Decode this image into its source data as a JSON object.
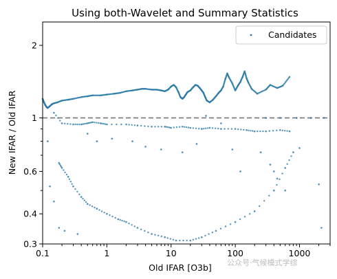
{
  "chart_data": {
    "type": "scatter",
    "title": "Using both-Wavelet and Summary Statistics",
    "xlabel": "Old IFAR [O3b]",
    "ylabel": "New IFAR / Old IFAR",
    "xscale": "log",
    "yscale": "log",
    "xlim": [
      0.1,
      3000
    ],
    "ylim": [
      0.3,
      2.5
    ],
    "xticks": [
      {
        "value": 0.1,
        "label": "0.1"
      },
      {
        "value": 1,
        "label": "1"
      },
      {
        "value": 10,
        "label": "10"
      },
      {
        "value": 100,
        "label": "100"
      },
      {
        "value": 1000,
        "label": "1000"
      }
    ],
    "yticks": [
      {
        "value": 0.3,
        "label": "0.3"
      },
      {
        "value": 0.4,
        "label": "0.4"
      },
      {
        "value": 0.6,
        "label": "0.6"
      },
      {
        "value": 1,
        "label": "1"
      },
      {
        "value": 2,
        "label": "2"
      }
    ],
    "reference_line": {
      "y": 1,
      "style": "dashed",
      "color": "#777777"
    },
    "legend": {
      "placement": "top-right",
      "entries": [
        "Candidates"
      ]
    },
    "series": [
      {
        "name": "Candidates",
        "color": "#2c7ba6",
        "groups": {
          "upper_band": [
            [
              0.1,
              1.2
            ],
            [
              0.105,
              1.16
            ],
            [
              0.11,
              1.13
            ],
            [
              0.115,
              1.11
            ],
            [
              0.12,
              1.1
            ],
            [
              0.13,
              1.12
            ],
            [
              0.14,
              1.14
            ],
            [
              0.15,
              1.15
            ],
            [
              0.17,
              1.16
            ],
            [
              0.2,
              1.18
            ],
            [
              0.25,
              1.19
            ],
            [
              0.3,
              1.2
            ],
            [
              0.4,
              1.22
            ],
            [
              0.5,
              1.23
            ],
            [
              0.6,
              1.24
            ],
            [
              0.8,
              1.24
            ],
            [
              1,
              1.25
            ],
            [
              1.3,
              1.26
            ],
            [
              1.6,
              1.27
            ],
            [
              2,
              1.29
            ],
            [
              2.5,
              1.3
            ],
            [
              3,
              1.31
            ],
            [
              3.5,
              1.32
            ],
            [
              4,
              1.32
            ],
            [
              5,
              1.31
            ],
            [
              6,
              1.31
            ],
            [
              7,
              1.3
            ],
            [
              8,
              1.29
            ],
            [
              9,
              1.31
            ],
            [
              10,
              1.35
            ],
            [
              11,
              1.37
            ],
            [
              12,
              1.34
            ],
            [
              13,
              1.28
            ],
            [
              14,
              1.22
            ],
            [
              15,
              1.2
            ],
            [
              16,
              1.22
            ],
            [
              17,
              1.25
            ],
            [
              18,
              1.28
            ],
            [
              20,
              1.3
            ],
            [
              22,
              1.34
            ],
            [
              24,
              1.37
            ],
            [
              26,
              1.36
            ],
            [
              28,
              1.33
            ],
            [
              30,
              1.3
            ],
            [
              32,
              1.27
            ],
            [
              34,
              1.22
            ],
            [
              36,
              1.18
            ],
            [
              40,
              1.16
            ],
            [
              45,
              1.19
            ],
            [
              50,
              1.23
            ],
            [
              55,
              1.27
            ],
            [
              60,
              1.3
            ],
            [
              65,
              1.35
            ],
            [
              70,
              1.45
            ],
            [
              75,
              1.53
            ],
            [
              80,
              1.47
            ],
            [
              90,
              1.39
            ],
            [
              100,
              1.3
            ],
            [
              110,
              1.36
            ],
            [
              120,
              1.41
            ],
            [
              130,
              1.48
            ],
            [
              140,
              1.56
            ],
            [
              150,
              1.46
            ],
            [
              160,
              1.4
            ],
            [
              180,
              1.32
            ],
            [
              220,
              1.26
            ],
            [
              300,
              1.31
            ],
            [
              350,
              1.37
            ],
            [
              450,
              1.33
            ],
            [
              550,
              1.36
            ],
            [
              700,
              1.48
            ]
          ],
          "lower_band": [
            [
              0.15,
              1.05
            ],
            [
              0.2,
              0.95
            ],
            [
              0.3,
              0.94
            ],
            [
              0.4,
              0.94
            ],
            [
              0.5,
              0.95
            ],
            [
              0.6,
              0.96
            ],
            [
              0.8,
              0.95
            ],
            [
              1,
              0.94
            ],
            [
              2,
              0.94
            ],
            [
              3,
              0.93
            ],
            [
              5,
              0.92
            ],
            [
              8,
              0.92
            ],
            [
              10,
              0.91
            ],
            [
              15,
              0.92
            ],
            [
              20,
              0.91
            ],
            [
              30,
              0.9
            ],
            [
              40,
              0.91
            ],
            [
              60,
              0.9
            ],
            [
              100,
              0.9
            ],
            [
              150,
              0.89
            ],
            [
              200,
              0.88
            ],
            [
              300,
              0.88
            ],
            [
              500,
              0.89
            ],
            [
              700,
              0.88
            ]
          ],
          "decay_arc": [
            [
              0.18,
              0.65
            ],
            [
              0.2,
              0.62
            ],
            [
              0.25,
              0.57
            ],
            [
              0.3,
              0.52
            ],
            [
              0.4,
              0.47
            ],
            [
              0.5,
              0.44
            ],
            [
              0.7,
              0.42
            ],
            [
              1,
              0.4
            ],
            [
              1.5,
              0.38
            ],
            [
              2,
              0.37
            ],
            [
              3,
              0.35
            ],
            [
              5,
              0.33
            ],
            [
              8,
              0.32
            ],
            [
              12,
              0.31
            ],
            [
              20,
              0.31
            ],
            [
              30,
              0.32
            ],
            [
              50,
              0.34
            ],
            [
              100,
              0.37
            ],
            [
              200,
              0.41
            ],
            [
              400,
              0.5
            ],
            [
              600,
              0.62
            ],
            [
              800,
              0.72
            ]
          ],
          "scattered": [
            [
              0.12,
              0.8
            ],
            [
              0.13,
              0.52
            ],
            [
              0.15,
              0.45
            ],
            [
              0.18,
              0.35
            ],
            [
              0.22,
              0.34
            ],
            [
              0.35,
              0.33
            ],
            [
              0.5,
              0.86
            ],
            [
              0.7,
              0.8
            ],
            [
              1.2,
              0.82
            ],
            [
              2.5,
              0.8
            ],
            [
              4,
              0.76
            ],
            [
              7,
              0.74
            ],
            [
              15,
              0.72
            ],
            [
              25,
              0.78
            ],
            [
              35,
              1.02
            ],
            [
              60,
              0.95
            ],
            [
              90,
              0.74
            ],
            [
              120,
              0.6
            ],
            [
              250,
              0.72
            ],
            [
              350,
              0.64
            ],
            [
              400,
              0.6
            ],
            [
              450,
              0.56
            ],
            [
              600,
              0.5
            ],
            [
              900,
              1.0
            ],
            [
              1000,
              0.75
            ],
            [
              2000,
              0.53
            ],
            [
              2200,
              0.35
            ],
            [
              2400,
              1.0
            ],
            [
              300,
              1.0
            ],
            [
              500,
              1.0
            ],
            [
              1500,
              1.0
            ]
          ]
        }
      }
    ]
  },
  "watermark": "公众号·气候模式学综"
}
